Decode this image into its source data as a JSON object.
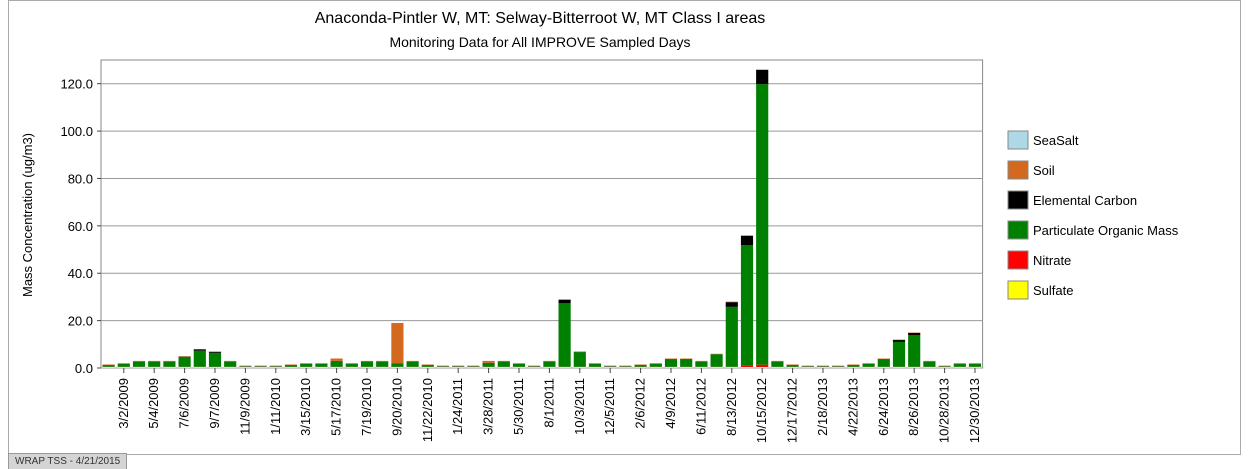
{
  "chart_data": {
    "type": "stacked_bar",
    "title": "Anaconda-Pintler W, MT: Selway-Bitterroot W, MT Class I areas",
    "subtitle": "Monitoring Data for All IMPROVE Sampled Days",
    "y_label": "Mass Concentration (ug/m3)",
    "footer": "WRAP TSS - 4/21/2015",
    "categories": [
      null,
      "3/2/2009",
      null,
      "5/4/2009",
      null,
      "7/6/2009",
      null,
      "9/7/2009",
      null,
      "11/9/2009",
      null,
      "1/11/2010",
      null,
      "3/15/2010",
      null,
      "5/17/2010",
      null,
      "7/19/2010",
      null,
      "9/20/2010",
      null,
      "11/22/2010",
      null,
      "1/24/2011",
      null,
      "3/28/2011",
      null,
      "5/30/2011",
      null,
      "8/1/2011",
      null,
      "10/3/2011",
      null,
      "12/5/2011",
      null,
      "2/6/2012",
      null,
      "4/9/2012",
      null,
      "6/11/2012",
      null,
      "8/13/2012",
      null,
      "10/15/2012",
      null,
      "12/17/2012",
      null,
      "2/18/2013",
      null,
      "4/22/2013",
      null,
      "6/24/2013",
      null,
      "8/26/2013",
      null,
      "10/28/2013",
      null,
      "12/30/2013"
    ],
    "series": [
      {
        "name": "SeaSalt",
        "color": "#add8e6",
        "values": [
          0,
          0,
          0,
          0,
          0,
          0,
          0,
          0,
          0,
          0,
          0,
          0,
          0,
          0,
          0,
          0,
          0,
          0,
          0,
          0,
          0,
          0,
          0,
          0,
          0,
          0,
          0,
          0,
          0,
          0,
          0,
          0,
          0,
          0,
          0,
          0,
          0,
          0,
          0,
          0,
          0,
          0,
          0,
          0,
          0,
          0,
          0,
          0,
          0,
          0,
          0,
          0,
          0,
          0,
          0,
          0,
          0,
          0
        ]
      },
      {
        "name": "Soil",
        "color": "#d2691e",
        "values": [
          0.2,
          0.2,
          0.2,
          0.2,
          0.2,
          0.2,
          0.2,
          0.2,
          0.2,
          0.2,
          0.2,
          0.2,
          0.2,
          0.2,
          0.2,
          1,
          0.2,
          0.2,
          0.2,
          17,
          0.2,
          0.2,
          0.2,
          0.2,
          0.2,
          0.8,
          0.2,
          0.2,
          0.2,
          0.2,
          0.2,
          0.2,
          0.2,
          0.2,
          0.2,
          0.2,
          0.2,
          0.2,
          0.2,
          0.2,
          0.2,
          0.2,
          0.2,
          0.2,
          0.2,
          0.2,
          0.2,
          0.2,
          0.2,
          0.2,
          0.2,
          0.2,
          0.2,
          0.2,
          0.2,
          0.2,
          0.2,
          0.2
        ]
      },
      {
        "name": "Elemental Carbon",
        "color": "#000000",
        "values": [
          0.1,
          0.1,
          0.1,
          0.1,
          0.1,
          0.1,
          0.5,
          0.4,
          0.1,
          0.1,
          0.1,
          0.1,
          0.1,
          0.1,
          0.1,
          0.1,
          0.1,
          0.1,
          0.1,
          0.1,
          0.1,
          0.1,
          0.1,
          0.1,
          0.1,
          0.1,
          0.1,
          0.1,
          0.1,
          0.1,
          1.5,
          0.1,
          0.1,
          0.1,
          0.1,
          0.1,
          0.1,
          0.1,
          0.1,
          0.1,
          0.1,
          2,
          4,
          6,
          0.1,
          0.1,
          0.1,
          0.1,
          0.1,
          0.1,
          0.1,
          0.1,
          0.8,
          1,
          0.1,
          0.1,
          0.1,
          0.1
        ]
      },
      {
        "name": "Particulate Organic Mass",
        "color": "#008000",
        "values": [
          0.7,
          1.2,
          2.2,
          2.2,
          2.2,
          4.2,
          6.8,
          5.9,
          2.2,
          0.2,
          0.2,
          0.2,
          0.7,
          1.2,
          1.2,
          2.4,
          1.2,
          2.2,
          2.2,
          1.4,
          2.2,
          0.7,
          0.2,
          0.2,
          0.2,
          1.6,
          2.2,
          1.2,
          0.2,
          2.2,
          26.8,
          6.2,
          1.2,
          0.2,
          0.2,
          0.7,
          1.2,
          3.2,
          3.2,
          2.2,
          5.2,
          25.3,
          50.9,
          118.4,
          2.2,
          0.7,
          0.2,
          0.2,
          0.2,
          0.7,
          1.2,
          3.2,
          10.5,
          13.3,
          2.2,
          0.2,
          1.2,
          1.2
        ]
      },
      {
        "name": "Nitrate",
        "color": "#ff0000",
        "values": [
          0.1,
          0.1,
          0.1,
          0.1,
          0.1,
          0.1,
          0.1,
          0.1,
          0.1,
          0.1,
          0.1,
          0.1,
          0.1,
          0.1,
          0.1,
          0.1,
          0.1,
          0.1,
          0.1,
          0.1,
          0.1,
          0.1,
          0.1,
          0.1,
          0.1,
          0.1,
          0.1,
          0.1,
          0.1,
          0.1,
          0.1,
          0.1,
          0.1,
          0.1,
          0.1,
          0.1,
          0.1,
          0.1,
          0.1,
          0.1,
          0.1,
          0.1,
          0.5,
          1,
          0.1,
          0.1,
          0.1,
          0.1,
          0.1,
          0.1,
          0.1,
          0.1,
          0.1,
          0.1,
          0.1,
          0.1,
          0.1,
          0.1
        ]
      },
      {
        "name": "Sulfate",
        "color": "#ffff00",
        "values": [
          0.4,
          0.4,
          0.4,
          0.4,
          0.4,
          0.4,
          0.4,
          0.4,
          0.4,
          0.4,
          0.4,
          0.4,
          0.4,
          0.4,
          0.4,
          0.4,
          0.4,
          0.4,
          0.4,
          0.4,
          0.4,
          0.4,
          0.4,
          0.4,
          0.4,
          0.4,
          0.4,
          0.4,
          0.4,
          0.4,
          0.4,
          0.4,
          0.4,
          0.4,
          0.4,
          0.4,
          0.4,
          0.4,
          0.4,
          0.4,
          0.4,
          0.4,
          0.4,
          0.4,
          0.4,
          0.4,
          0.4,
          0.4,
          0.4,
          0.4,
          0.4,
          0.4,
          0.4,
          0.4,
          0.4,
          0.4,
          0.4,
          0.4
        ]
      }
    ],
    "ylim": [
      0,
      130
    ],
    "yticks": [
      {
        "value": 0,
        "label": "0.0"
      },
      {
        "value": 20,
        "label": "20.0"
      },
      {
        "value": 40,
        "label": "40.0"
      },
      {
        "value": 60,
        "label": "60.0"
      },
      {
        "value": 80,
        "label": "80.0"
      },
      {
        "value": 100,
        "label": "100.0"
      },
      {
        "value": 120,
        "label": "120.0"
      }
    ],
    "grid": true,
    "legend": "right"
  }
}
